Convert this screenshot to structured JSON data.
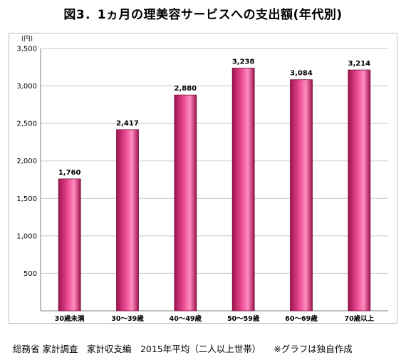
{
  "title": "図3．1ヵ月の理美容サービスへの支出額(年代別)",
  "colors": {
    "bar_dark": "#a0134f",
    "bar_mid": "#f0509a",
    "bar_light": "#ff8ec0",
    "grid": "#c8c8c8"
  },
  "chart_data": {
    "type": "bar",
    "title": "図3．1ヵ月の理美容サービスへの支出額(年代別)",
    "unit_label": "(円)",
    "categories": [
      "30歳未満",
      "30～39歳",
      "40～49歳",
      "50～59歳",
      "60～69歳",
      "70歳以上"
    ],
    "values": [
      1760,
      2417,
      2880,
      3238,
      3084,
      3214
    ],
    "value_labels": [
      "1,760",
      "2,417",
      "2,880",
      "3,238",
      "3,084",
      "3,214"
    ],
    "y_ticks": [
      "500",
      "1,000",
      "1,500",
      "2,000",
      "2,500",
      "3,000",
      "3,500"
    ],
    "y_tick_values": [
      500,
      1000,
      1500,
      2000,
      2500,
      3000,
      3500
    ],
    "ylim": [
      0,
      3500
    ],
    "grid": true,
    "legend": "none"
  },
  "source": {
    "survey": "総務省 家計調査　家計収支編　2015年平均（二人以上世帯）",
    "note": "※グラフは独自作成"
  }
}
